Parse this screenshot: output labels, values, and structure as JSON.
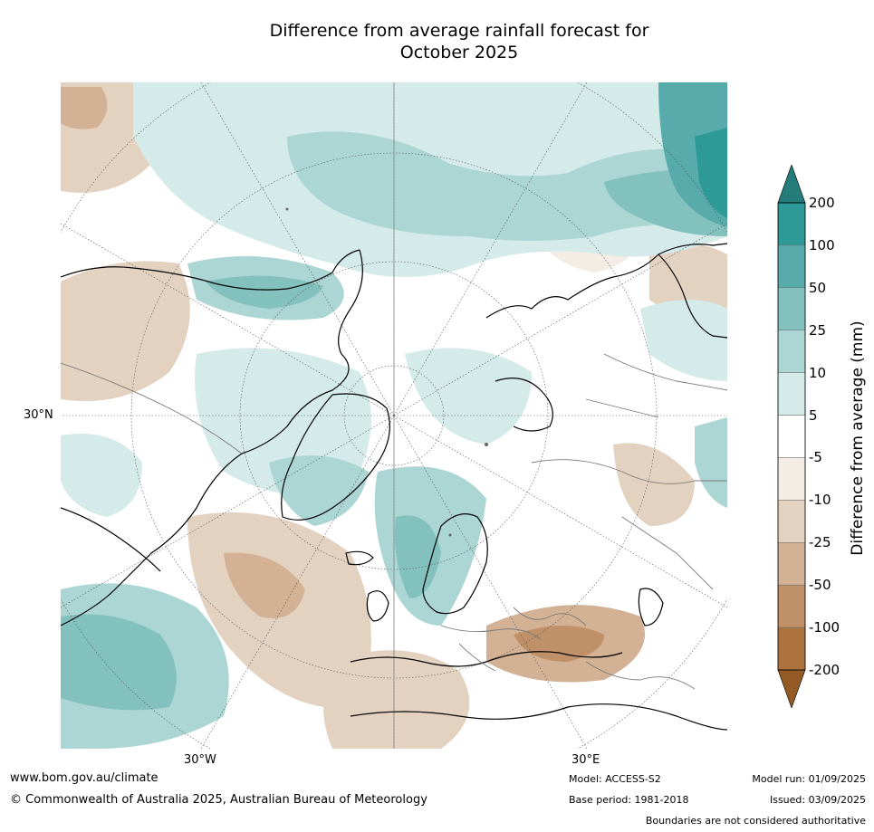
{
  "title": {
    "line1": "Difference from average rainfall forecast for",
    "line2": "October 2025"
  },
  "map": {
    "projection": "north-polar-stereographic",
    "longitude_labels": [
      "30°W",
      "30°E"
    ],
    "latitude_labels": [
      "30°N"
    ],
    "colors": {
      "ocean_neutral": "#ffffff",
      "coast": "#000000",
      "borders": "#7a7a7a",
      "graticule": "#555555"
    }
  },
  "colorbar": {
    "title": "Difference from average (mm)",
    "ticks": [
      "200",
      "100",
      "50",
      "25",
      "10",
      "5",
      "-5",
      "-10",
      "-25",
      "-50",
      "-100",
      "-200"
    ],
    "bins_top_to_bottom": [
      "#2d9a97",
      "#57abaa",
      "#83c1be",
      "#acd6d4",
      "#d5ebea",
      "#ffffff",
      "#f3ede6",
      "#e4d2c1",
      "#d2b194",
      "#c09068",
      "#ac733e"
    ],
    "over_color": "#247d7a",
    "under_color": "#945a25"
  },
  "footer": {
    "website": "www.bom.gov.au/climate",
    "copyright": "© Commonwealth of Australia 2025, Australian Bureau of Meteorology",
    "model": "Model: ACCESS-S2",
    "base_period": "Base period: 1981-2018",
    "model_run": "Model run: 01/09/2025",
    "issued": "Issued: 03/09/2025",
    "disclaimer": "Boundaries are not considered authoritative"
  }
}
